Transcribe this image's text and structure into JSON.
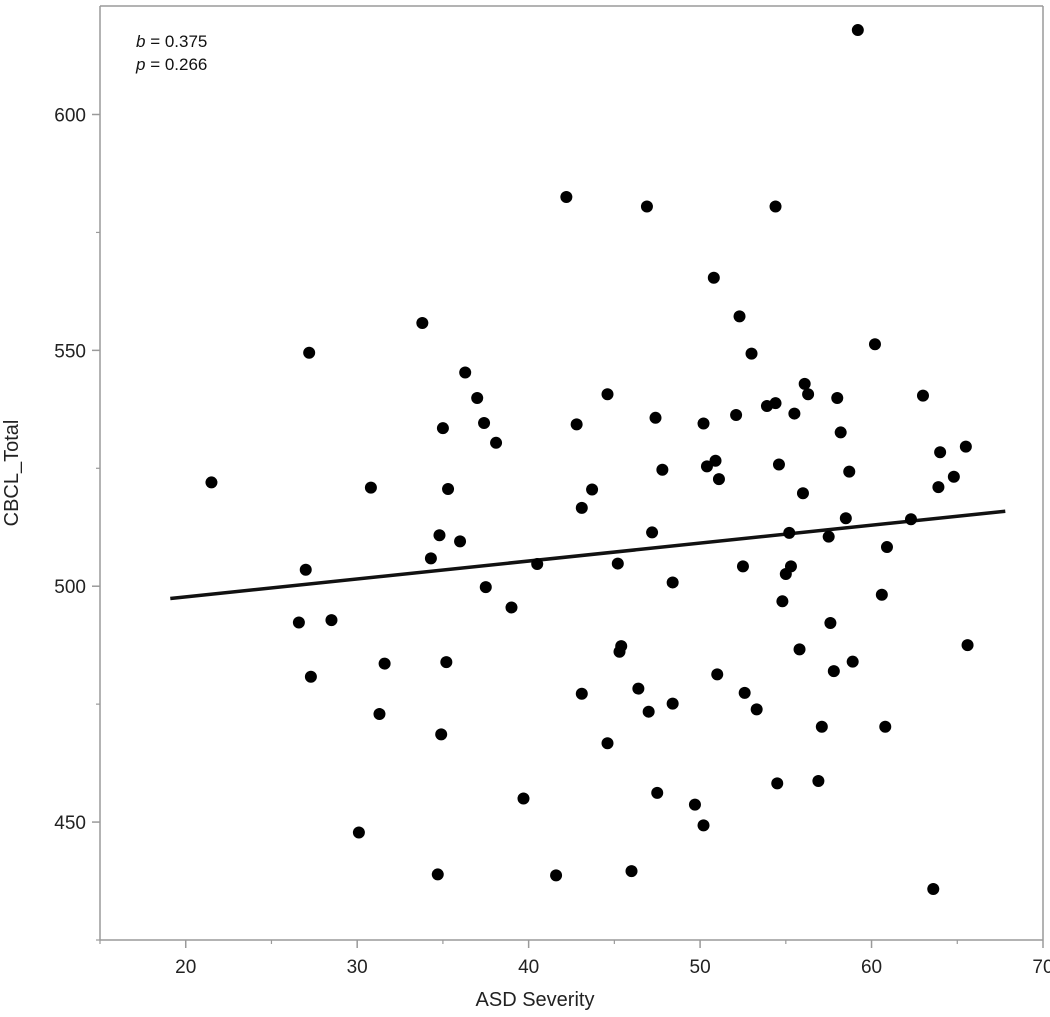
{
  "chart_data": {
    "type": "scatter",
    "xlabel": "ASD Severity",
    "ylabel": "CBCL_Total",
    "xlim": [
      15,
      70
    ],
    "ylim": [
      425,
      623
    ],
    "xticks": [
      20,
      30,
      40,
      50,
      60,
      70
    ],
    "yticks": [
      450,
      500,
      550,
      600
    ],
    "annotations": {
      "b_label": "b",
      "b_value": " = 0.375",
      "p_label": "p",
      "p_value": " = 0.266"
    },
    "regression_line": {
      "x": [
        19.1,
        67.8
      ],
      "y": [
        497.4,
        515.9
      ]
    },
    "grid": false,
    "points": [
      {
        "x": 21.5,
        "y": 522
      },
      {
        "x": 26.6,
        "y": 492.3
      },
      {
        "x": 27.0,
        "y": 503.5
      },
      {
        "x": 27.2,
        "y": 549.5
      },
      {
        "x": 27.3,
        "y": 480.8
      },
      {
        "x": 28.5,
        "y": 492.8
      },
      {
        "x": 30.1,
        "y": 447.8
      },
      {
        "x": 30.8,
        "y": 520.9
      },
      {
        "x": 31.3,
        "y": 472.9
      },
      {
        "x": 31.6,
        "y": 483.6
      },
      {
        "x": 33.8,
        "y": 555.8
      },
      {
        "x": 34.3,
        "y": 505.9
      },
      {
        "x": 34.7,
        "y": 438.9
      },
      {
        "x": 34.8,
        "y": 510.8
      },
      {
        "x": 34.9,
        "y": 468.6
      },
      {
        "x": 35.0,
        "y": 533.5
      },
      {
        "x": 35.2,
        "y": 483.9
      },
      {
        "x": 35.3,
        "y": 520.6
      },
      {
        "x": 36.0,
        "y": 509.5
      },
      {
        "x": 36.3,
        "y": 545.3
      },
      {
        "x": 37.0,
        "y": 539.9
      },
      {
        "x": 37.4,
        "y": 534.6
      },
      {
        "x": 37.5,
        "y": 499.8
      },
      {
        "x": 38.1,
        "y": 530.4
      },
      {
        "x": 39.0,
        "y": 495.5
      },
      {
        "x": 39.7,
        "y": 455.0
      },
      {
        "x": 40.5,
        "y": 504.7
      },
      {
        "x": 41.6,
        "y": 438.7
      },
      {
        "x": 42.2,
        "y": 582.5
      },
      {
        "x": 42.8,
        "y": 534.3
      },
      {
        "x": 43.1,
        "y": 516.6
      },
      {
        "x": 43.1,
        "y": 477.2
      },
      {
        "x": 43.7,
        "y": 520.5
      },
      {
        "x": 44.6,
        "y": 466.7
      },
      {
        "x": 44.6,
        "y": 540.7
      },
      {
        "x": 45.2,
        "y": 504.8
      },
      {
        "x": 45.3,
        "y": 486.1
      },
      {
        "x": 45.4,
        "y": 487.3
      },
      {
        "x": 46.0,
        "y": 439.6
      },
      {
        "x": 46.4,
        "y": 478.3
      },
      {
        "x": 46.9,
        "y": 580.5
      },
      {
        "x": 47.0,
        "y": 473.4
      },
      {
        "x": 47.2,
        "y": 511.4
      },
      {
        "x": 47.4,
        "y": 535.7
      },
      {
        "x": 47.5,
        "y": 456.2
      },
      {
        "x": 47.8,
        "y": 524.7
      },
      {
        "x": 48.4,
        "y": 500.8
      },
      {
        "x": 48.4,
        "y": 475.1
      },
      {
        "x": 49.7,
        "y": 453.7
      },
      {
        "x": 50.2,
        "y": 534.5
      },
      {
        "x": 50.2,
        "y": 449.3
      },
      {
        "x": 50.4,
        "y": 525.4
      },
      {
        "x": 50.8,
        "y": 565.4
      },
      {
        "x": 50.9,
        "y": 526.6
      },
      {
        "x": 51.0,
        "y": 481.3
      },
      {
        "x": 51.1,
        "y": 522.7
      },
      {
        "x": 52.1,
        "y": 536.3
      },
      {
        "x": 52.3,
        "y": 557.2
      },
      {
        "x": 52.5,
        "y": 504.2
      },
      {
        "x": 52.6,
        "y": 477.4
      },
      {
        "x": 53.0,
        "y": 549.3
      },
      {
        "x": 53.3,
        "y": 473.9
      },
      {
        "x": 53.9,
        "y": 538.2
      },
      {
        "x": 54.4,
        "y": 580.5
      },
      {
        "x": 54.4,
        "y": 538.8
      },
      {
        "x": 54.5,
        "y": 458.2
      },
      {
        "x": 54.6,
        "y": 525.8
      },
      {
        "x": 54.8,
        "y": 496.8
      },
      {
        "x": 55.0,
        "y": 502.6
      },
      {
        "x": 55.2,
        "y": 511.3
      },
      {
        "x": 55.3,
        "y": 504.2
      },
      {
        "x": 55.5,
        "y": 536.6
      },
      {
        "x": 55.8,
        "y": 486.6
      },
      {
        "x": 56.0,
        "y": 519.7
      },
      {
        "x": 56.1,
        "y": 542.9
      },
      {
        "x": 56.3,
        "y": 540.7
      },
      {
        "x": 56.9,
        "y": 458.7
      },
      {
        "x": 57.1,
        "y": 470.2
      },
      {
        "x": 57.5,
        "y": 510.5
      },
      {
        "x": 57.6,
        "y": 492.2
      },
      {
        "x": 57.8,
        "y": 482.0
      },
      {
        "x": 58.0,
        "y": 539.9
      },
      {
        "x": 58.2,
        "y": 532.6
      },
      {
        "x": 58.5,
        "y": 514.4
      },
      {
        "x": 58.7,
        "y": 524.3
      },
      {
        "x": 58.9,
        "y": 484.0
      },
      {
        "x": 59.2,
        "y": 617.9
      },
      {
        "x": 60.2,
        "y": 551.3
      },
      {
        "x": 60.6,
        "y": 498.2
      },
      {
        "x": 60.8,
        "y": 470.2
      },
      {
        "x": 60.9,
        "y": 508.3
      },
      {
        "x": 62.3,
        "y": 514.2
      },
      {
        "x": 63.0,
        "y": 540.4
      },
      {
        "x": 63.6,
        "y": 435.8
      },
      {
        "x": 63.9,
        "y": 521.0
      },
      {
        "x": 64.0,
        "y": 528.4
      },
      {
        "x": 64.8,
        "y": 523.2
      },
      {
        "x": 65.5,
        "y": 529.6
      },
      {
        "x": 65.6,
        "y": 487.5
      }
    ]
  }
}
